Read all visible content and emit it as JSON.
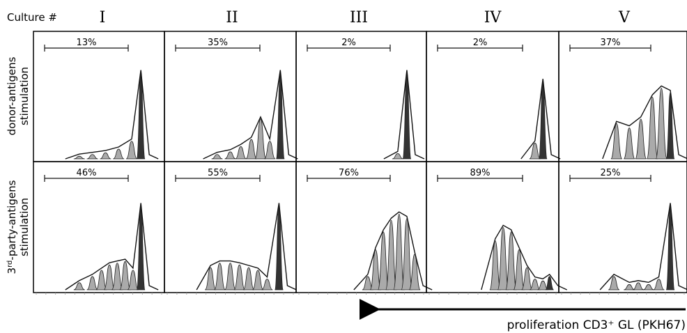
{
  "chart_data": {
    "type": "histogram-grid",
    "culture_label": "Culture #",
    "columns": [
      "I",
      "II",
      "III",
      "IV",
      "V"
    ],
    "rows": [
      {
        "label_lines": [
          "donor-antigens",
          "stimulation"
        ],
        "percentages": [
          "13%",
          "35%",
          "2%",
          "2%",
          "37%"
        ]
      },
      {
        "label_lines": [
          "3rd-party-antigens",
          "stimulation"
        ],
        "percentages": [
          "46%",
          "55%",
          "76%",
          "89%",
          "25%"
        ]
      }
    ],
    "xlabel": "proliferation CD3⁺ GL (PKH67)",
    "arrow_direction": "left"
  }
}
